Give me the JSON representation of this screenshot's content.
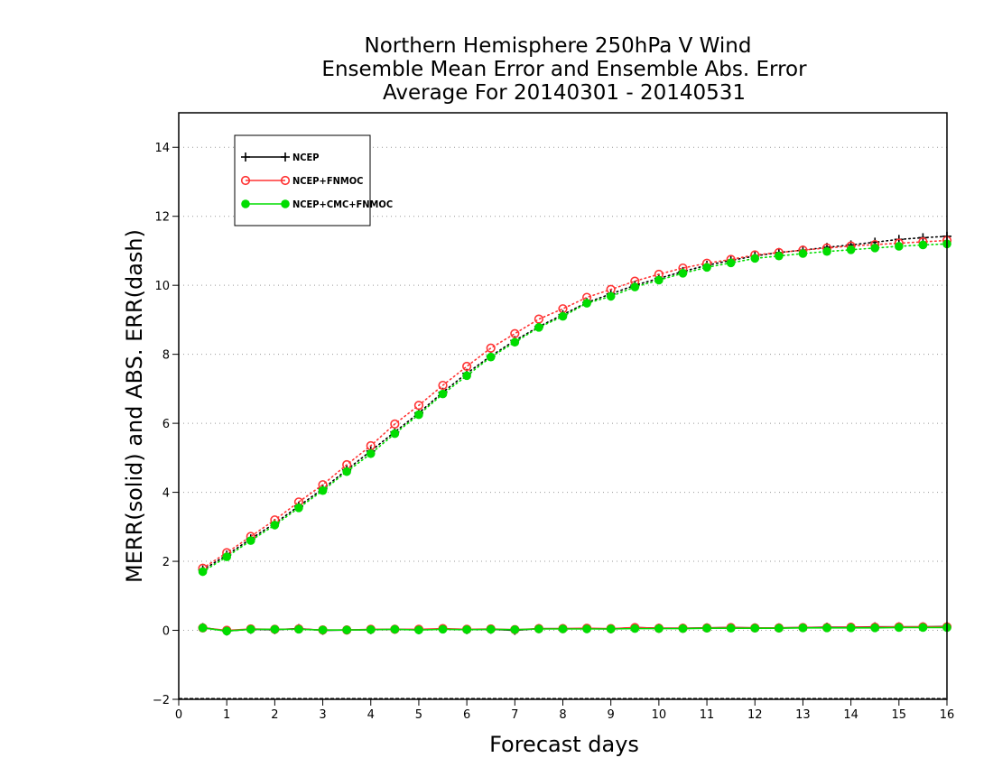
{
  "chart_data": {
    "type": "line",
    "title": [
      "Northern Hemisphere 250hPa V Wind",
      "Ensemble Mean Error and Ensemble Abs. Error",
      "Average For 20140301 - 20140531"
    ],
    "xlabel": "Forecast days",
    "ylabel": "MERR(solid) and ABS. ERR(dash)",
    "xlim": [
      0,
      16
    ],
    "ylim": [
      -2,
      15
    ],
    "xticks": [
      0,
      1,
      2,
      3,
      4,
      5,
      6,
      7,
      8,
      9,
      10,
      11,
      12,
      13,
      14,
      15,
      16
    ],
    "yticks": [
      -2,
      0,
      2,
      4,
      6,
      8,
      10,
      12,
      14
    ],
    "grid": "horizontal dotted",
    "legend_position": "top-left",
    "x": [
      0.5,
      1,
      1.5,
      2,
      2.5,
      3,
      3.5,
      4,
      4.5,
      5,
      5.5,
      6,
      6.5,
      7,
      7.5,
      8,
      8.5,
      9,
      9.5,
      10,
      10.5,
      11,
      11.5,
      12,
      12.5,
      13,
      13.5,
      14,
      14.5,
      15,
      15.5,
      16
    ],
    "series": [
      {
        "name": "NCEP",
        "color": "#000000",
        "marker": "plus",
        "merr": [
          0.08,
          -0.02,
          0.03,
          0.02,
          0.05,
          0.0,
          0.01,
          0.02,
          0.03,
          0.02,
          0.04,
          0.02,
          0.03,
          0.0,
          0.05,
          0.05,
          0.05,
          0.04,
          0.08,
          0.06,
          0.06,
          0.07,
          0.08,
          0.07,
          0.07,
          0.08,
          0.09,
          0.09,
          0.1,
          0.1,
          0.1,
          0.11
        ],
        "abs_err": [
          1.75,
          2.18,
          2.65,
          3.1,
          3.6,
          4.1,
          4.65,
          5.2,
          5.75,
          6.3,
          6.9,
          7.45,
          7.95,
          8.4,
          8.8,
          9.15,
          9.5,
          9.75,
          10.0,
          10.2,
          10.4,
          10.58,
          10.72,
          10.85,
          10.95,
          11.02,
          11.1,
          11.17,
          11.25,
          11.33,
          11.38,
          11.42
        ]
      },
      {
        "name": "NCEP+FNMOC",
        "color": "#ff3333",
        "marker": "open-circle",
        "merr": [
          0.07,
          0.0,
          0.04,
          0.03,
          0.04,
          0.01,
          0.01,
          0.03,
          0.03,
          0.03,
          0.05,
          0.03,
          0.04,
          0.02,
          0.05,
          0.05,
          0.06,
          0.05,
          0.08,
          0.06,
          0.06,
          0.07,
          0.08,
          0.07,
          0.07,
          0.08,
          0.08,
          0.09,
          0.09,
          0.1,
          0.1,
          0.1
        ],
        "abs_err": [
          1.8,
          2.25,
          2.72,
          3.2,
          3.72,
          4.22,
          4.8,
          5.35,
          5.98,
          6.52,
          7.1,
          7.65,
          8.18,
          8.6,
          9.02,
          9.32,
          9.65,
          9.88,
          10.12,
          10.32,
          10.5,
          10.64,
          10.75,
          10.88,
          10.95,
          11.02,
          11.08,
          11.14,
          11.18,
          11.22,
          11.26,
          11.3
        ]
      },
      {
        "name": "NCEP+CMC+FNMOC",
        "color": "#00dd00",
        "marker": "filled-circle",
        "merr": [
          0.07,
          -0.02,
          0.03,
          0.03,
          0.03,
          0.01,
          0.01,
          0.02,
          0.03,
          0.01,
          0.03,
          0.02,
          0.03,
          0.02,
          0.04,
          0.04,
          0.04,
          0.04,
          0.05,
          0.05,
          0.05,
          0.06,
          0.06,
          0.06,
          0.06,
          0.07,
          0.07,
          0.07,
          0.07,
          0.08,
          0.08,
          0.08
        ],
        "abs_err": [
          1.7,
          2.13,
          2.6,
          3.05,
          3.55,
          4.05,
          4.6,
          5.12,
          5.7,
          6.25,
          6.85,
          7.38,
          7.92,
          8.35,
          8.78,
          9.1,
          9.48,
          9.68,
          9.95,
          10.15,
          10.35,
          10.52,
          10.65,
          10.78,
          10.85,
          10.92,
          10.98,
          11.03,
          11.08,
          11.13,
          11.17,
          11.2
        ]
      }
    ]
  }
}
